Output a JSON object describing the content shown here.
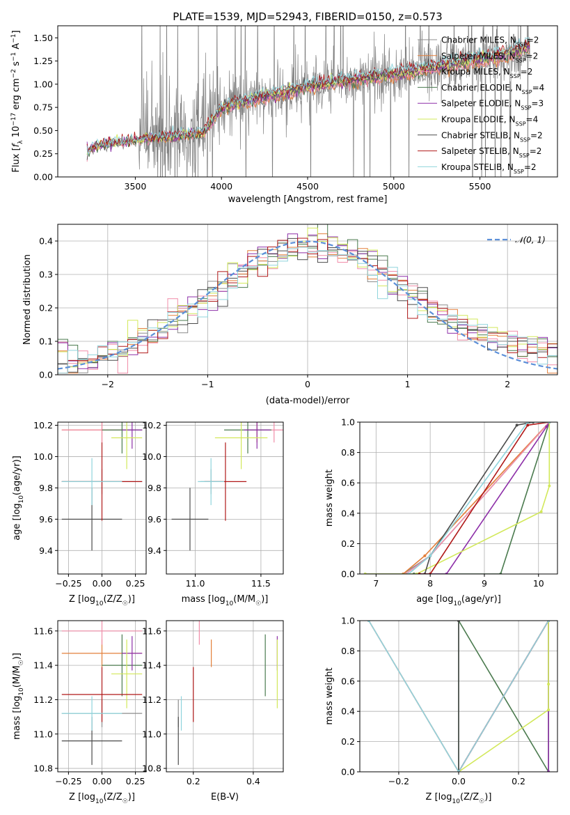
{
  "figure": {
    "title": "PLATE=1539, MJD=52943, FIBERID=0150, z=0.573"
  },
  "colors": {
    "data": "#808080",
    "chabrier_miles": "#8c8c8c",
    "salpeter_miles": "#e37f3a",
    "kroupa_miles": "#f08ca8",
    "chabrier_elodie": "#4a7a4e",
    "salpeter_elodie": "#8d2fa8",
    "kroupa_elodie": "#d2e85a",
    "chabrier_stelib": "#4b4b4b",
    "salpeter_stelib": "#b01818",
    "kroupa_stelib": "#8fd4dc",
    "normal_curve": "#5b8fd8"
  },
  "models": [
    {
      "key": "chabrier_miles",
      "label": "Chabrier MILES, N",
      "n": "=2"
    },
    {
      "key": "salpeter_miles",
      "label": "Salpeter MILES, N",
      "n": "=2"
    },
    {
      "key": "kroupa_miles",
      "label": "Kroupa MILES, N",
      "n": "=2"
    },
    {
      "key": "chabrier_elodie",
      "label": "Chabrier ELODIE, N",
      "n": "=4"
    },
    {
      "key": "salpeter_elodie",
      "label": "Salpeter ELODIE, N",
      "n": "=3"
    },
    {
      "key": "kroupa_elodie",
      "label": "Kroupa ELODIE, N",
      "n": "=4"
    },
    {
      "key": "chabrier_stelib",
      "label": "Chabrier STELIB, N",
      "n": "=2"
    },
    {
      "key": "salpeter_stelib",
      "label": "Salpeter STELIB, N",
      "n": "=2"
    },
    {
      "key": "kroupa_stelib",
      "label": "Kroupa STELIB, N",
      "n": "=2"
    }
  ],
  "chart_data": [
    {
      "id": "spectrum",
      "type": "line",
      "xlabel": "wavelength [Angstrom, rest frame]",
      "ylabel": "Flux [f_λ 10^-17 erg cm^-2 s^-1 A^-1]",
      "xlim": [
        3050,
        5950
      ],
      "ylim": [
        0,
        1.63
      ],
      "xticks": [
        3500,
        4000,
        4500,
        5000,
        5500
      ],
      "yticks": [
        0.0,
        0.25,
        0.5,
        0.75,
        1.0,
        1.25,
        1.5
      ],
      "data_x_range": [
        3220,
        5790
      ],
      "continuum_model": {
        "x": [
          3220,
          3270,
          3350,
          3500,
          3600,
          3800,
          3900,
          3950,
          4000,
          4100,
          4300,
          4500,
          4700,
          4900,
          5100,
          5300,
          5500,
          5700,
          5790
        ],
        "y": [
          0.27,
          0.34,
          0.36,
          0.4,
          0.42,
          0.45,
          0.48,
          0.62,
          0.74,
          0.8,
          0.88,
          0.97,
          1.03,
          1.08,
          1.13,
          1.2,
          1.26,
          1.34,
          1.4
        ]
      },
      "legend_position": "upper right",
      "grid": false
    },
    {
      "id": "residual_histogram",
      "type": "line",
      "xlabel": "(data-model)/error",
      "ylabel": "Normed distribution",
      "xlim": [
        -2.5,
        2.5
      ],
      "ylim": [
        0,
        0.45
      ],
      "xticks": [
        -2,
        -1,
        0,
        1,
        2
      ],
      "yticks": [
        0.0,
        0.1,
        0.2,
        0.3,
        0.4
      ],
      "curve": {
        "name": "N(0,1)",
        "mu": 0,
        "sigma": 1
      },
      "histogram_envelope": {
        "x": [
          -2.5,
          -2.0,
          -1.5,
          -1.0,
          -0.5,
          0.0,
          0.5,
          1.0,
          1.5,
          2.0,
          2.5
        ],
        "y": [
          0.02,
          0.06,
          0.13,
          0.23,
          0.34,
          0.39,
          0.36,
          0.25,
          0.15,
          0.1,
          0.06
        ]
      },
      "legend_position": "upper right",
      "grid": true
    },
    {
      "id": "age_vs_Z",
      "type": "scatter",
      "xlabel": "Z [log10(Z/Z☉)]",
      "ylabel": "age  [log10(age/yr)]",
      "xlim": [
        -0.33,
        0.33
      ],
      "ylim": [
        9.25,
        10.22
      ],
      "xticks": [
        -0.25,
        0.0,
        0.25
      ],
      "yticks": [
        9.4,
        9.6,
        9.8,
        10.0,
        10.2
      ],
      "grid": true
    },
    {
      "id": "age_vs_mass",
      "type": "scatter",
      "xlabel": "mass [log10(M/M☉)]",
      "ylabel": "",
      "xlim": [
        10.78,
        11.67
      ],
      "ylim": [
        9.25,
        10.22
      ],
      "xticks": [
        11.0,
        11.5
      ],
      "yticks": [
        9.4,
        9.6,
        9.8,
        10.0,
        10.2
      ],
      "grid": true
    },
    {
      "id": "massweight_vs_age",
      "type": "line",
      "xlabel": "age  [log10(age/yr)]",
      "ylabel": "mass weight",
      "xlim": [
        6.7,
        10.35
      ],
      "ylim": [
        0,
        1.0
      ],
      "xticks": [
        7,
        8,
        9,
        10
      ],
      "yticks": [
        0.0,
        0.2,
        0.4,
        0.6,
        0.8,
        1.0
      ],
      "grid": true
    },
    {
      "id": "mass_vs_Z",
      "type": "scatter",
      "xlabel": "Z [log10(Z/Z☉)]",
      "ylabel": "mass [log10(M/M☉)]",
      "xlim": [
        -0.33,
        0.33
      ],
      "ylim": [
        10.78,
        11.66
      ],
      "xticks": [
        -0.25,
        0.0,
        0.25
      ],
      "yticks": [
        10.8,
        11.0,
        11.2,
        11.4,
        11.6
      ],
      "grid": true
    },
    {
      "id": "mass_vs_ebv",
      "type": "scatter",
      "xlabel": "E(B-V)",
      "ylabel": "",
      "xlim": [
        0.11,
        0.5
      ],
      "ylim": [
        10.78,
        11.66
      ],
      "xticks": [
        0.2,
        0.4
      ],
      "yticks": [
        10.8,
        11.0,
        11.2,
        11.4,
        11.6
      ],
      "grid": true
    },
    {
      "id": "massweight_vs_Z",
      "type": "line",
      "xlabel": "Z [log10(Z/Z☉)]",
      "ylabel": "mass weight",
      "xlim": [
        -0.33,
        0.33
      ],
      "ylim": [
        0,
        1.0
      ],
      "xticks": [
        -0.2,
        0.0,
        0.2
      ],
      "yticks": [
        0.0,
        0.2,
        0.4,
        0.6,
        0.8,
        1.0
      ],
      "grid": true
    }
  ],
  "models_params": {
    "chabrier_miles": {
      "Z": [
        -0.3,
        0.3
      ],
      "age": 9.84,
      "mass": 11.12,
      "ebv": 0.15,
      "age_err": 0.08,
      "mass_err": 0.08
    },
    "salpeter_miles": {
      "Z": [
        -0.3,
        0.3
      ],
      "age": 10.17,
      "mass": 11.47,
      "ebv": 0.26,
      "age_err": 0.08,
      "mass_err": 0.08
    },
    "kroupa_miles": {
      "Z": [
        -0.3,
        0.3
      ],
      "age": 10.17,
      "mass": 11.6,
      "ebv": 0.22,
      "age_err": 0.08,
      "mass_err": 0.08
    },
    "chabrier_elodie": {
      "Z": [
        0.0,
        0.3
      ],
      "age": 10.17,
      "mass": 11.4,
      "ebv": 0.44,
      "age_err": 0.15,
      "mass_err": 0.18
    },
    "salpeter_elodie": {
      "Z": [
        0.15,
        0.3
      ],
      "age": 10.17,
      "mass": 11.47,
      "ebv": 0.48,
      "age_err": 0.12,
      "mass_err": 0.1
    },
    "kroupa_elodie": {
      "Z": [
        0.07,
        0.3
      ],
      "age": 10.12,
      "mass": 11.35,
      "ebv": 0.48,
      "age_err": 0.2,
      "mass_err": 0.2
    },
    "chabrier_stelib": {
      "Z": [
        -0.3,
        0.15
      ],
      "age": 9.6,
      "mass": 10.96,
      "ebv": 0.15,
      "age_err": 0.2,
      "mass_err": 0.14
    },
    "salpeter_stelib": {
      "Z": [
        -0.3,
        0.3
      ],
      "age": 9.84,
      "mass": 11.23,
      "ebv": 0.2,
      "age_err": 0.25,
      "mass_err": 0.16
    },
    "kroupa_stelib": {
      "Z": [
        -0.3,
        0.15
      ],
      "age": 9.84,
      "mass": 11.12,
      "ebv": 0.16,
      "age_err": 0.15,
      "mass_err": 0.1
    }
  },
  "cumulative_mass": {
    "chabrier_miles": {
      "age": [
        7.5,
        8.0,
        10.2
      ],
      "w": [
        0.0,
        0.12,
        1.0
      ]
    },
    "salpeter_miles": {
      "age": [
        7.5,
        7.9,
        10.2
      ],
      "w": [
        0.0,
        0.12,
        1.0
      ]
    },
    "kroupa_miles": {
      "age": [
        7.55,
        8.0,
        10.2
      ],
      "w": [
        0.0,
        0.12,
        1.0
      ]
    },
    "chabrier_elodie": {
      "age": [
        6.8,
        7.7,
        9.3,
        10.2,
        10.2
      ],
      "w": [
        0.0,
        0.0,
        0.0,
        1.0,
        1.0
      ]
    },
    "salpeter_elodie": {
      "age": [
        7.8,
        8.3,
        10.15,
        10.2
      ],
      "w": [
        0.0,
        0.0,
        0.97,
        1.0
      ]
    },
    "kroupa_elodie": {
      "age": [
        6.8,
        7.75,
        10.05,
        10.2,
        10.2
      ],
      "w": [
        0.0,
        0.0,
        0.41,
        0.58,
        1.0
      ]
    },
    "chabrier_stelib": {
      "age": [
        7.9,
        8.0,
        9.6,
        9.9
      ],
      "w": [
        0.0,
        0.12,
        0.98,
        1.0
      ]
    },
    "salpeter_stelib": {
      "age": [
        7.8,
        8.0,
        9.8,
        10.2
      ],
      "w": [
        0.0,
        0.0,
        0.98,
        1.0
      ]
    },
    "kroupa_stelib": {
      "age": [
        7.6,
        8.0,
        9.8,
        10.2
      ],
      "w": [
        0.0,
        0.12,
        1.0,
        1.0
      ]
    }
  },
  "cumulative_mass_Z": {
    "chabrier_miles": {
      "Z": [
        -0.3,
        0.0,
        0.3
      ],
      "w": [
        1.0,
        0.0,
        1.0
      ]
    },
    "salpeter_miles": {
      "Z": [
        -0.3,
        0.0,
        0.3
      ],
      "w": [
        1.0,
        0.0,
        1.0
      ]
    },
    "kroupa_miles": {
      "Z": [
        -0.3,
        0.0,
        0.3
      ],
      "w": [
        1.0,
        0.0,
        1.0
      ]
    },
    "chabrier_elodie": {
      "Z": [
        0.0,
        0.0,
        0.3,
        0.3
      ],
      "w": [
        0.0,
        1.0,
        0.0,
        1.0
      ]
    },
    "salpeter_elodie": {
      "Z": [
        0.0,
        0.3,
        0.3,
        0.3
      ],
      "w": [
        0.0,
        1.0,
        0.0,
        1.0
      ]
    },
    "kroupa_elodie": {
      "Z": [
        0.0,
        0.3,
        0.3,
        0.3
      ],
      "w": [
        0.0,
        0.41,
        0.58,
        1.0
      ]
    },
    "chabrier_stelib": {
      "Z": [
        0.0,
        0.0
      ],
      "w": [
        0.0,
        1.0
      ]
    },
    "salpeter_stelib": {
      "Z": [
        0.0,
        0.3
      ],
      "w": [
        0.0,
        1.0
      ]
    },
    "kroupa_stelib": {
      "Z": [
        -0.3,
        0.0,
        0.3
      ],
      "w": [
        1.0,
        0.0,
        1.0
      ]
    }
  }
}
